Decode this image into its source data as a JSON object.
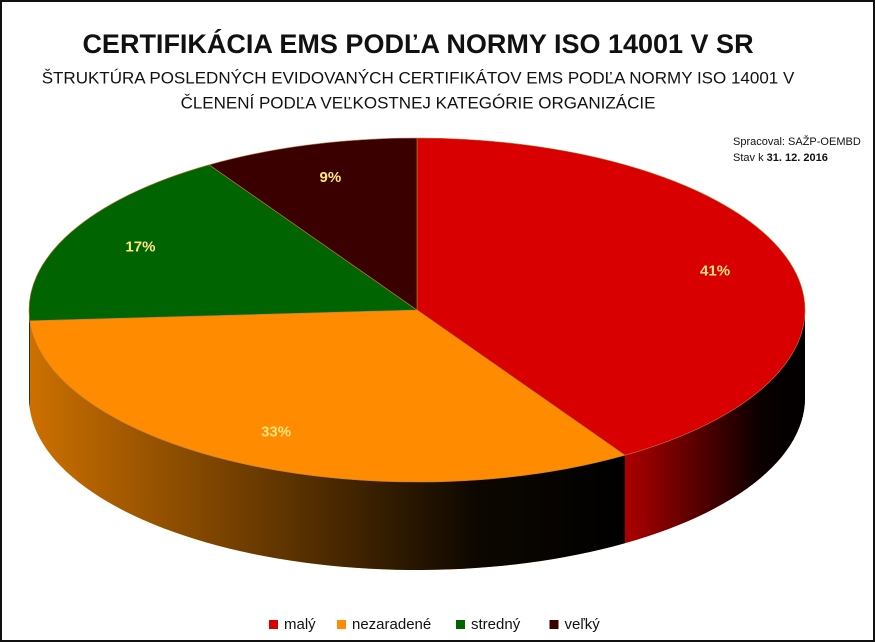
{
  "chart_data": {
    "type": "pie3d",
    "title": "CERTIFIKÁCIA EMS PODĽA NORMY ISO 14001 V SR",
    "subtitle": [
      "ŠTRUKTÚRA POSLEDNÝCH EVIDOVANÝCH CERTIFIKÁTOV EMS PODĽA NORMY ISO 14001 V",
      "ČLENENÍ PODĽA VEĽKOSTNEJ KATEGÓRIE ORGANIZÁCIE"
    ],
    "source": {
      "label": "Spracoval: SAŽP-OEMBD",
      "date_label": "Stav k",
      "date": "31. 12. 2016"
    },
    "categories": [
      "malý",
      "nezaradené",
      "stredný",
      "veľký"
    ],
    "values": [
      41,
      33,
      17,
      9
    ],
    "value_labels": [
      "41%",
      "33%",
      "17%",
      "9%"
    ],
    "colors": [
      "#d80000",
      "#ff8c00",
      "#006400",
      "#3a0000"
    ],
    "legend": "bottom"
  }
}
